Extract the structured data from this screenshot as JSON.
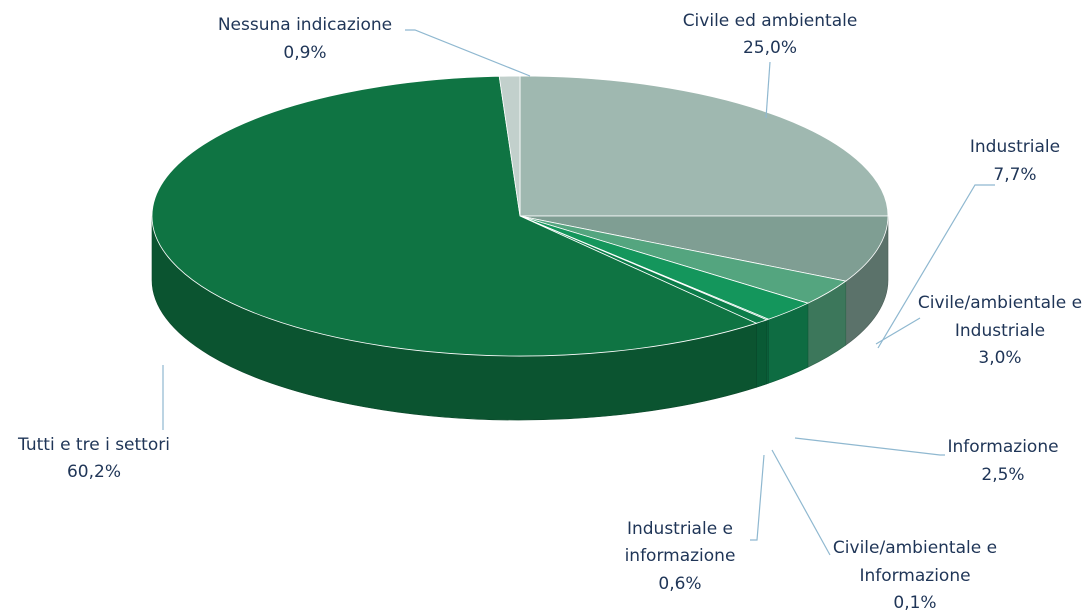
{
  "chart_data": {
    "type": "pie",
    "style": "3d-exploded-none",
    "start_direction": "12 o'clock, clockwise",
    "slices": [
      {
        "label": "Civile ed ambientale",
        "value": 25.0,
        "value_label": "25,0%",
        "color": "#9fb8b0"
      },
      {
        "label": "Industriale",
        "value": 7.7,
        "value_label": "7,7%",
        "color": "#7f9e93"
      },
      {
        "label": "Civile/ambientale e Industriale",
        "value": 3.0,
        "value_label": "3,0%",
        "color": "#54a57f"
      },
      {
        "label": "Informazione",
        "value": 2.5,
        "value_label": "2,5%",
        "color": "#14965c"
      },
      {
        "label": "Civile/ambientale e Informazione",
        "value": 0.1,
        "value_label": "0,1%",
        "color": "#0f8a55"
      },
      {
        "label": "Industriale e informazione",
        "value": 0.6,
        "value_label": "0,6%",
        "color": "#0c7d4a"
      },
      {
        "label": "Tutti e tre i settori",
        "value": 60.2,
        "value_label": "60,2%",
        "color": "#0f7443"
      },
      {
        "label": "Nessuna indicazione",
        "value": 0.9,
        "value_label": "0,9%",
        "color": "#c2d0cc"
      }
    ],
    "leader_line_color": "#8fb8d0",
    "label_color": "#1f3557"
  }
}
